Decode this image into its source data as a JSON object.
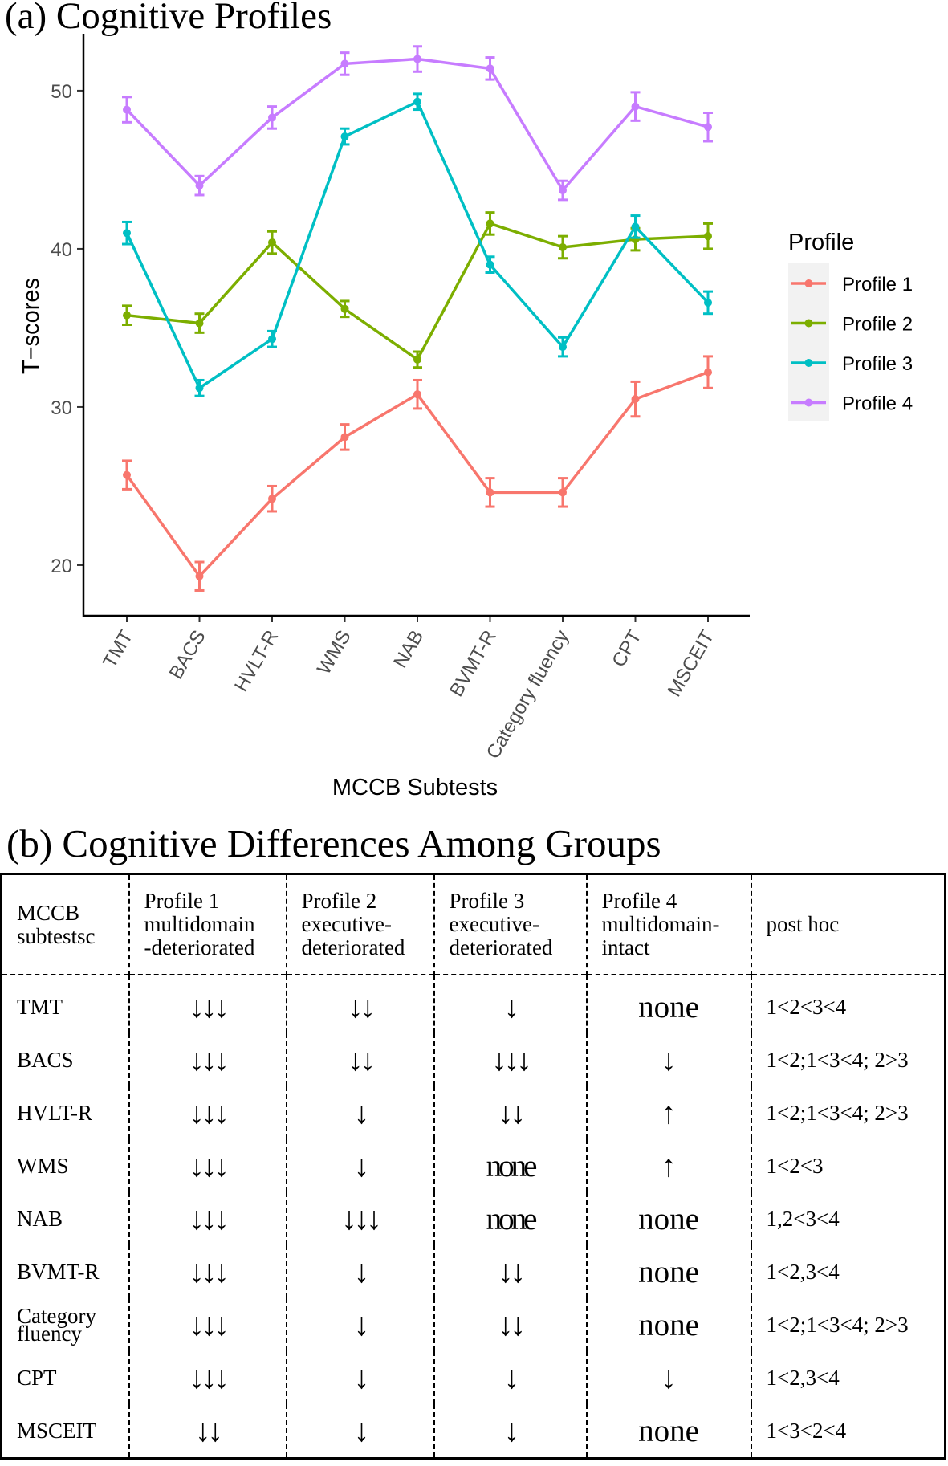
{
  "panel_a": {
    "title": "(a) Cognitive Profiles"
  },
  "chart_data": {
    "type": "line",
    "title": "(a) Cognitive Profiles",
    "xlabel": "MCCB Subtests",
    "ylabel": "T−scores",
    "categories": [
      "TMT",
      "BACS",
      "HVLT-R",
      "WMS",
      "NAB",
      "BVMT-R",
      "Category fluency",
      "CPT",
      "MSCEIT"
    ],
    "ylim": [
      16.8,
      53.6
    ],
    "yticks": [
      20,
      30,
      40,
      50
    ],
    "legend_title": "Profile",
    "legend_position": "right",
    "error_bars": true,
    "series": [
      {
        "name": "Profile 1",
        "color": "#F8766D",
        "values": [
          25.7,
          19.3,
          24.2,
          28.1,
          30.8,
          24.6,
          24.6,
          30.5,
          32.2
        ],
        "error": [
          0.9,
          0.9,
          0.8,
          0.8,
          0.9,
          0.9,
          0.9,
          1.1,
          1.0
        ]
      },
      {
        "name": "Profile 2",
        "color": "#7CAE00",
        "values": [
          35.8,
          35.3,
          40.4,
          36.2,
          33.0,
          41.6,
          40.1,
          40.6,
          40.8
        ],
        "error": [
          0.6,
          0.6,
          0.7,
          0.5,
          0.5,
          0.7,
          0.7,
          0.7,
          0.8
        ]
      },
      {
        "name": "Profile 3",
        "color": "#00BFC4",
        "values": [
          41.0,
          31.2,
          34.3,
          47.1,
          49.3,
          39.0,
          33.8,
          41.4,
          36.6
        ],
        "error": [
          0.7,
          0.5,
          0.5,
          0.5,
          0.5,
          0.5,
          0.6,
          0.7,
          0.7
        ]
      },
      {
        "name": "Profile 4",
        "color": "#C77CFF",
        "values": [
          48.8,
          44.0,
          48.3,
          51.7,
          52.0,
          51.4,
          43.7,
          49.0,
          47.7
        ],
        "error": [
          0.8,
          0.6,
          0.7,
          0.7,
          0.8,
          0.7,
          0.6,
          0.9,
          0.9
        ]
      }
    ]
  },
  "panel_b": {
    "title": "(b) Cognitive Differences Among Groups",
    "headers": [
      [
        "MCCB",
        "subtestsc"
      ],
      [
        "Profile 1",
        "multidomain",
        "-deteriorated"
      ],
      [
        "Profile 2",
        "executive-",
        "deteriorated"
      ],
      [
        "Profile 3",
        "executive-",
        "deteriorated"
      ],
      [
        "Profile 4",
        "multidomain-",
        "intact"
      ],
      [
        "post hoc"
      ]
    ],
    "rows": [
      {
        "name": [
          "TMT"
        ],
        "p1": "↓↓↓",
        "p2": "↓↓",
        "p3": "↓",
        "p4": "none",
        "posthoc": "1<2<3<4"
      },
      {
        "name": [
          "BACS"
        ],
        "p1": "↓↓↓",
        "p2": "↓↓",
        "p3": "↓↓↓",
        "p4": "↓",
        "posthoc": "1<2;1<3<4; 2>3"
      },
      {
        "name": [
          "HVLT-R"
        ],
        "p1": "↓↓↓",
        "p2": "↓",
        "p3": "↓↓",
        "p4": "↑",
        "posthoc": "1<2;1<3<4; 2>3"
      },
      {
        "name": [
          "WMS"
        ],
        "p1": "↓↓↓",
        "p2": "↓",
        "p3": "none",
        "p4": "↑",
        "posthoc": "1<2<3"
      },
      {
        "name": [
          "NAB"
        ],
        "p1": "↓↓↓",
        "p2": "↓↓↓",
        "p3": "none",
        "p4": "none",
        "posthoc": "1,2<3<4"
      },
      {
        "name": [
          "BVMT-R"
        ],
        "p1": "↓↓↓",
        "p2": "↓",
        "p3": "↓↓",
        "p4": "none",
        "posthoc": "1<2,3<4"
      },
      {
        "name": [
          "Category",
          "fluency"
        ],
        "p1": "↓↓↓",
        "p2": "↓",
        "p3": "↓↓",
        "p4": "none",
        "posthoc": "1<2;1<3<4; 2>3"
      },
      {
        "name": [
          "CPT"
        ],
        "p1": "↓↓↓",
        "p2": "↓",
        "p3": "↓",
        "p4": "↓",
        "posthoc": "1<2,3<4"
      },
      {
        "name": [
          "MSCEIT"
        ],
        "p1": "↓↓",
        "p2": "↓",
        "p3": "↓",
        "p4": "none",
        "posthoc": "1<3<2<4"
      }
    ]
  }
}
